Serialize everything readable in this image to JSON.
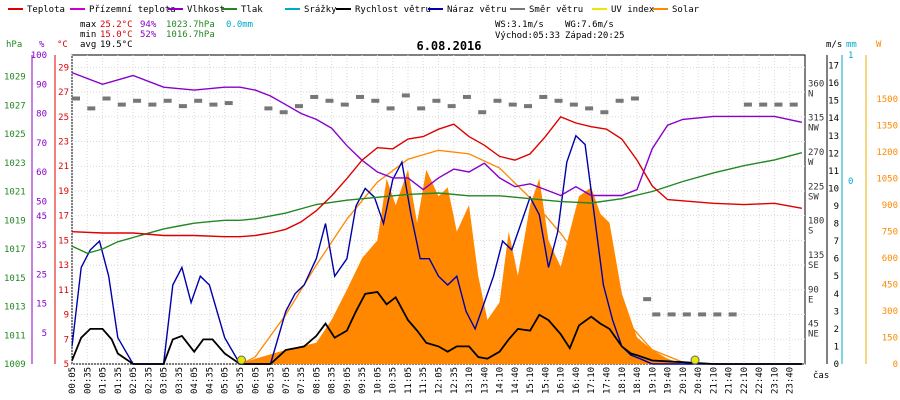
{
  "chart_data": {
    "type": "line",
    "title": "6.08.2016",
    "time_unit": "čas",
    "legend": [
      {
        "label": "Teplota",
        "color": "#dd0000"
      },
      {
        "label": "Přízemní teplota",
        "color": "#cc00cc"
      },
      {
        "label": "Vlhkost",
        "color": "#8800cc"
      },
      {
        "label": "Tlak",
        "color": "#228822"
      },
      {
        "label": "Srážky",
        "color": "#00aacc"
      },
      {
        "label": "Rychlost větru",
        "color": "#000000"
      },
      {
        "label": "Náraz větru",
        "color": "#0000aa"
      },
      {
        "label": "Směr větru",
        "color": "#777777"
      },
      {
        "label": "UV index",
        "color": "#e8e800"
      },
      {
        "label": "Solar",
        "color": "#ff8800"
      }
    ],
    "stats": {
      "max": {
        "label": "max",
        "temp": "25.2°C",
        "hum": "94%",
        "press": "1023.7hPa",
        "rain": "0.0mm"
      },
      "min": {
        "label": "min",
        "temp": "15.0°C",
        "hum": "52%",
        "press": "1016.7hPa"
      },
      "avg": {
        "label": "avg",
        "temp": "19.5°C"
      },
      "ws": "WS:3.1m/s",
      "wg": "WG:7.6m/s",
      "sunrise": "Východ:05:33",
      "sunset": "Západ:20:25"
    },
    "axes": {
      "press": {
        "unit": "hPa",
        "ticks": [
          "1009",
          "1011",
          "1013",
          "1015",
          "1017",
          "1019",
          "1021",
          "1023",
          "1025",
          "1027",
          "1029"
        ],
        "ylim": [
          1009,
          1030.5
        ]
      },
      "hum": {
        "unit": "%",
        "ticks": [
          "5",
          "15",
          "25",
          "35",
          "45",
          "50",
          "60",
          "70",
          "80",
          "90",
          "100"
        ]
      },
      "temp": {
        "unit": "°C",
        "ticks": [
          "5",
          "7",
          "9",
          "11",
          "13",
          "15",
          "17",
          "19",
          "21",
          "23",
          "25",
          "27",
          "29"
        ],
        "ylim": [
          5,
          30
        ]
      },
      "dir": {
        "ticks": [
          {
            "deg": "360",
            "name": "N",
            "v": 360
          },
          {
            "deg": "315",
            "name": "NW",
            "v": 315
          },
          {
            "deg": "270",
            "name": "W",
            "v": 270
          },
          {
            "deg": "225",
            "name": "SW",
            "v": 225
          },
          {
            "deg": "180",
            "name": "S",
            "v": 180
          },
          {
            "deg": "135",
            "name": "SE",
            "v": 135
          },
          {
            "deg": "90",
            "name": "E",
            "v": 90
          },
          {
            "deg": "45",
            "name": "NE",
            "v": 45
          }
        ],
        "ylim": [
          0,
          405
        ]
      },
      "wind": {
        "unit": "m/s",
        "ticks": [
          "0",
          "1",
          "2",
          "3",
          "4",
          "5",
          "6",
          "7",
          "8",
          "9",
          "10",
          "11",
          "12",
          "13",
          "14",
          "15",
          "16",
          "17"
        ],
        "ylim": [
          0,
          17.6
        ]
      },
      "rain": {
        "unit": "mm",
        "ticks": [
          "0",
          "1"
        ]
      },
      "solar": {
        "unit": "W",
        "ticks": [
          "0",
          "150",
          "300",
          "450",
          "600",
          "750",
          "900",
          "1050",
          "1200",
          "1350",
          "1500"
        ],
        "ylim": [
          0,
          1750
        ]
      }
    },
    "x_ticks": [
      "00:05",
      "00:35",
      "01:05",
      "01:35",
      "02:05",
      "02:35",
      "03:05",
      "03:35",
      "04:05",
      "04:35",
      "05:05",
      "05:35",
      "06:05",
      "06:35",
      "07:05",
      "07:35",
      "08:05",
      "08:35",
      "09:05",
      "09:35",
      "10:05",
      "10:35",
      "11:05",
      "11:35",
      "12:05",
      "12:35",
      "13:10",
      "13:40",
      "14:10",
      "14:40",
      "15:10",
      "15:40",
      "16:10",
      "16:40",
      "17:10",
      "17:40",
      "18:10",
      "18:40",
      "19:10",
      "19:40",
      "20:10",
      "20:40",
      "21:10",
      "21:40",
      "22:10",
      "22:40",
      "23:10",
      "23:40"
    ],
    "series": [
      {
        "name": "Teplota",
        "axis": "temp",
        "color": "#dd0000",
        "x": [
          0,
          1,
          2,
          3,
          4,
          5,
          5.5,
          6,
          6.5,
          7,
          7.5,
          8,
          8.5,
          9,
          9.5,
          10,
          10.5,
          11,
          11.5,
          12,
          12.5,
          13,
          13.5,
          14,
          14.5,
          15,
          15.5,
          16,
          16.5,
          17,
          17.5,
          18,
          18.5,
          19,
          19.5,
          20,
          21,
          22,
          23,
          23.9
        ],
        "y": [
          15.7,
          15.6,
          15.6,
          15.4,
          15.4,
          15.3,
          15.3,
          15.4,
          15.6,
          15.9,
          16.5,
          17.4,
          18.6,
          20.0,
          21.5,
          22.5,
          22.4,
          23.2,
          23.4,
          24.0,
          24.4,
          23.4,
          22.7,
          21.8,
          21.5,
          22.0,
          23.4,
          25.0,
          24.5,
          24.2,
          24.0,
          23.2,
          21.5,
          19.4,
          18.3,
          18.2,
          18.0,
          17.9,
          18.0,
          17.6
        ]
      },
      {
        "name": "Vlhkost",
        "axis": "hum",
        "color": "#8800cc",
        "x": [
          0,
          1,
          2,
          3,
          4,
          5,
          5.5,
          6,
          6.5,
          7,
          7.5,
          8,
          8.5,
          9,
          9.5,
          10,
          10.5,
          11,
          11.5,
          12,
          12.5,
          13,
          13.5,
          14,
          14.5,
          15,
          15.5,
          16,
          16.5,
          17,
          17.5,
          18,
          18.5,
          19,
          19.5,
          20,
          21,
          22,
          23,
          23.9
        ],
        "y": [
          94,
          90,
          93,
          89,
          88,
          89,
          89,
          88,
          86,
          83,
          80,
          78,
          75,
          69,
          64,
          60,
          58,
          58,
          54,
          58,
          61,
          60,
          63,
          58,
          55,
          56,
          54,
          52,
          55,
          52,
          52,
          52,
          54,
          68,
          76,
          78,
          79,
          79,
          79,
          77
        ]
      },
      {
        "name": "Tlak",
        "axis": "press",
        "color": "#228822",
        "x": [
          0,
          0.5,
          1,
          1.5,
          2,
          2.5,
          3,
          3.5,
          4,
          4.5,
          5,
          5.5,
          6,
          7,
          8,
          9,
          10,
          11,
          12,
          13,
          14,
          15,
          16,
          17,
          18,
          19,
          20,
          21,
          22,
          23,
          23.9
        ],
        "y": [
          1017.2,
          1016.7,
          1017.0,
          1017.5,
          1017.8,
          1018.1,
          1018.4,
          1018.6,
          1018.8,
          1018.9,
          1019.0,
          1019.0,
          1019.1,
          1019.5,
          1020.1,
          1020.4,
          1020.6,
          1020.8,
          1020.9,
          1020.7,
          1020.7,
          1020.5,
          1020.3,
          1020.2,
          1020.5,
          1021.0,
          1021.7,
          1022.3,
          1022.8,
          1023.2,
          1023.7
        ]
      },
      {
        "name": "Rychlost větru",
        "axis": "wind",
        "color": "#000000",
        "x": [
          0,
          0.3,
          0.6,
          1,
          1.3,
          1.5,
          2,
          2.5,
          3,
          3.3,
          3.6,
          4,
          4.3,
          4.6,
          5,
          5.5,
          6,
          6.5,
          7,
          7.3,
          7.6,
          8,
          8.3,
          8.6,
          9,
          9.3,
          9.6,
          10,
          10.3,
          10.6,
          11,
          11.3,
          11.6,
          12,
          12.3,
          12.6,
          13,
          13.3,
          13.6,
          14,
          14.3,
          14.6,
          15,
          15.3,
          15.6,
          16,
          16.3,
          16.6,
          17,
          17.3,
          17.6,
          18,
          18.3,
          18.5,
          19,
          20,
          21,
          22,
          23,
          23.9
        ],
        "y": [
          0.2,
          1.5,
          2.0,
          2.0,
          1.4,
          0.6,
          0,
          0,
          0,
          1.4,
          1.6,
          0.7,
          1.4,
          1.4,
          0.6,
          0,
          0,
          0,
          0.8,
          0.9,
          1.0,
          1.6,
          2.3,
          1.5,
          1.9,
          3.0,
          4.0,
          4.1,
          3.4,
          3.8,
          2.5,
          1.9,
          1.2,
          1.0,
          0.7,
          1.0,
          1.0,
          0.4,
          0.3,
          0.7,
          1.4,
          2.0,
          1.9,
          2.8,
          2.5,
          1.7,
          0.9,
          2.2,
          2.7,
          2.3,
          2.0,
          1.0,
          0.6,
          0.5,
          0.2,
          0.1,
          0,
          0,
          0,
          0
        ]
      },
      {
        "name": "Náraz větru",
        "axis": "wind",
        "color": "#0000aa",
        "x": [
          0,
          0.3,
          0.6,
          0.9,
          1.2,
          1.5,
          2,
          2.5,
          3,
          3.3,
          3.6,
          3.9,
          4.2,
          4.5,
          5,
          5.5,
          6,
          6.5,
          7,
          7.3,
          7.6,
          8,
          8.3,
          8.6,
          9,
          9.3,
          9.6,
          9.9,
          10.2,
          10.5,
          10.8,
          11.1,
          11.4,
          11.7,
          12,
          12.3,
          12.6,
          12.9,
          13.2,
          13.5,
          13.8,
          14.1,
          14.4,
          14.7,
          15,
          15.3,
          15.6,
          15.9,
          16.2,
          16.5,
          16.8,
          17.1,
          17.4,
          17.7,
          18,
          18.3,
          18.6,
          19,
          20,
          21,
          22,
          23,
          23.9
        ],
        "y": [
          1,
          5.5,
          6.5,
          7.0,
          5.0,
          1.5,
          0,
          0,
          0,
          4.5,
          5.5,
          3.5,
          5.0,
          4.5,
          1.5,
          0,
          0,
          0,
          3.0,
          4.0,
          4.5,
          6.0,
          8.0,
          5.0,
          6.0,
          9.0,
          10.0,
          9.5,
          8.0,
          10.5,
          11.5,
          8.5,
          6.0,
          6.0,
          5.0,
          4.5,
          5.0,
          3.0,
          2.0,
          3.5,
          5.0,
          7.0,
          6.5,
          8.0,
          9.5,
          8.5,
          5.5,
          7.5,
          11.5,
          13.0,
          12.5,
          8.5,
          4.5,
          2.5,
          1.0,
          0.5,
          0.3,
          0,
          0,
          0,
          0,
          0,
          0
        ]
      },
      {
        "name": "Solar",
        "axis": "solar",
        "color": "#ff8800",
        "x": [
          5.5,
          6,
          7,
          8,
          8.5,
          9,
          9.5,
          10,
          10.3,
          10.6,
          11,
          11.3,
          11.6,
          12,
          12.3,
          12.6,
          13,
          13.3,
          13.6,
          14,
          14.3,
          14.6,
          15,
          15.3,
          15.6,
          16,
          16.3,
          16.6,
          17,
          17.3,
          17.6,
          18,
          18.5,
          19,
          19.5,
          20
        ],
        "y": [
          0,
          30,
          80,
          120,
          250,
          420,
          600,
          700,
          1050,
          900,
          1100,
          800,
          1100,
          950,
          1000,
          750,
          900,
          500,
          250,
          350,
          750,
          500,
          900,
          1050,
          700,
          550,
          750,
          950,
          1000,
          850,
          800,
          400,
          150,
          80,
          30,
          0
        ]
      },
      {
        "name": "Solar max",
        "axis": "solar",
        "color": "#ff8800",
        "x": [
          5.55,
          6,
          7,
          8,
          9,
          10,
          11,
          12,
          13,
          14,
          15,
          16,
          17,
          18,
          19,
          20,
          20.4
        ],
        "y": [
          0,
          40,
          280,
          560,
          820,
          1030,
          1160,
          1210,
          1190,
          1110,
          940,
          740,
          500,
          270,
          80,
          10,
          0
        ]
      }
    ],
    "wind_direction": {
      "type": "scatter",
      "axis": "dir",
      "color": "#777777",
      "x": [
        0,
        0.5,
        1,
        1.5,
        2,
        2.5,
        3,
        3.5,
        4,
        4.5,
        5,
        6.3,
        6.8,
        7.3,
        7.8,
        8.3,
        8.8,
        9.3,
        9.8,
        10.3,
        10.8,
        11.3,
        11.8,
        12.3,
        12.8,
        13.3,
        13.8,
        14.3,
        14.8,
        15.3,
        15.8,
        16.3,
        16.8,
        17.3,
        17.8,
        18.3,
        18.7,
        19,
        19.5,
        20,
        20.5,
        21,
        21.5,
        22,
        22.5,
        23,
        23.5
      ],
      "y": [
        348,
        335,
        348,
        340,
        345,
        340,
        345,
        338,
        345,
        340,
        342,
        335,
        330,
        338,
        350,
        345,
        340,
        350,
        345,
        335,
        352,
        335,
        345,
        338,
        350,
        330,
        345,
        340,
        338,
        350,
        345,
        340,
        335,
        330,
        345,
        348,
        85,
        65,
        65,
        65,
        65,
        65,
        65,
        340,
        340,
        340,
        340
      ]
    },
    "uv_markers": {
      "x": [
        5.55,
        20.4
      ],
      "color": "#e8e800"
    }
  }
}
